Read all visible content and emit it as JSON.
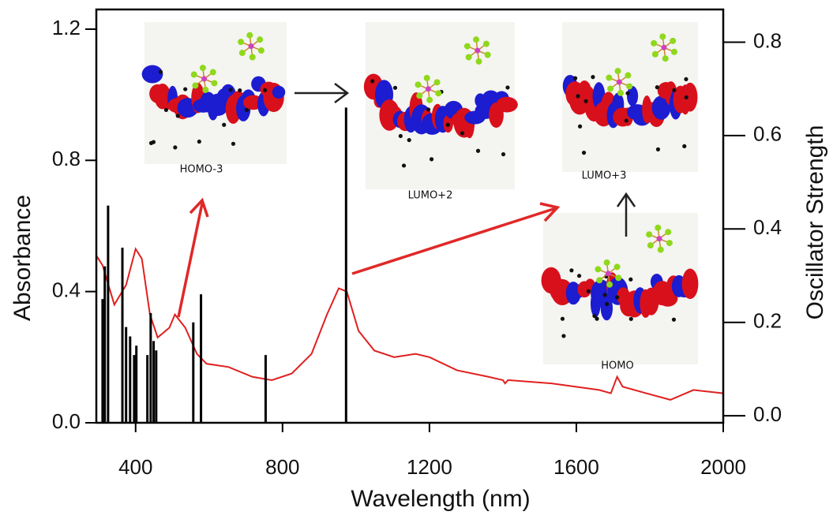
{
  "chart_data": {
    "type": "line",
    "xlabel": "Wavelength (nm)",
    "ylabel": "Absorbance",
    "y2label": "Oscillator Strength",
    "xlim": [
      293,
      2000
    ],
    "ylim": [
      0,
      1.26
    ],
    "y2lim": [
      -0.015,
      0.87
    ],
    "xticks": [
      400,
      800,
      1200,
      1600,
      2000
    ],
    "yticks": [
      {
        "value": 0,
        "label": "0.0"
      },
      0.4,
      0.8,
      1.2
    ],
    "y2ticks": [
      {
        "value": 0,
        "label": "0.0"
      },
      0.2,
      0.4,
      0.6,
      0.8
    ],
    "series": [
      {
        "color": "#e02020",
        "type": "line",
        "x": [
          293,
          310,
          342,
          374,
          400,
          417,
          439,
          460,
          492,
          507,
          535,
          567,
          593,
          653,
          718,
          771,
          825,
          879,
          921,
          953,
          975,
          1007,
          1050,
          1104,
          1162,
          1200,
          1275,
          1361,
          1400,
          1406,
          1414,
          1533,
          1662,
          1694,
          1711,
          1726,
          1790,
          1856,
          1919,
          2000
        ],
        "values": [
          0.51,
          0.48,
          0.36,
          0.42,
          0.53,
          0.5,
          0.33,
          0.26,
          0.29,
          0.33,
          0.29,
          0.21,
          0.18,
          0.17,
          0.14,
          0.13,
          0.15,
          0.21,
          0.33,
          0.41,
          0.4,
          0.28,
          0.22,
          0.2,
          0.21,
          0.2,
          0.16,
          0.14,
          0.13,
          0.12,
          0.13,
          0.12,
          0.1,
          0.09,
          0.14,
          0.11,
          0.09,
          0.07,
          0.1,
          0.09
        ]
      },
      {
        "color": "#000000",
        "type": "stick",
        "axis": "y2",
        "x": [
          310,
          316,
          325,
          364,
          374,
          385,
          396,
          402,
          432,
          441,
          449,
          456,
          557,
          578,
          754,
          973
        ],
        "values": [
          0.25,
          0.32,
          0.45,
          0.36,
          0.19,
          0.17,
          0.13,
          0.15,
          0.13,
          0.22,
          0.16,
          0.14,
          0.2,
          0.26,
          0.13,
          0.66
        ]
      }
    ],
    "annotations": [
      "HOMO-3",
      "LUMO+2",
      "LUMO+3",
      "HOMO"
    ]
  }
}
